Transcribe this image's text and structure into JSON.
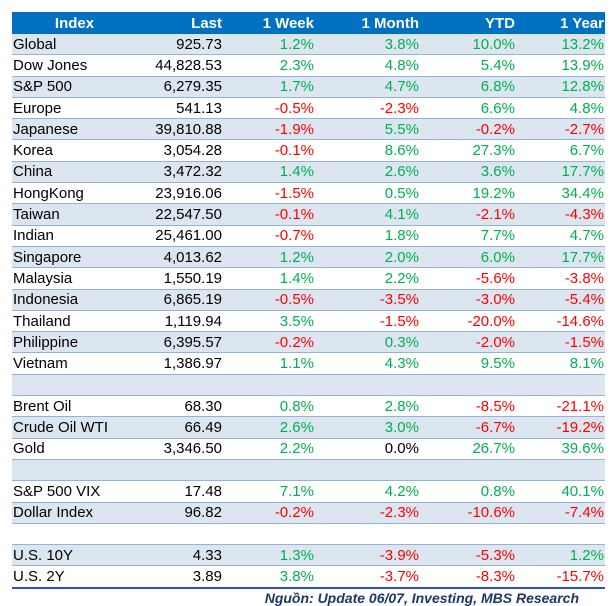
{
  "columns": [
    "Index",
    "Last",
    "1 Week",
    "1 Month",
    "YTD",
    "1 Year"
  ],
  "rows": [
    [
      "Global",
      "925.73",
      "1.2%",
      "3.8%",
      "10.0%",
      "13.2%"
    ],
    [
      "Dow Jones",
      "44,828.53",
      "2.3%",
      "4.8%",
      "5.4%",
      "13.9%"
    ],
    [
      "S&P 500",
      "6,279.35",
      "1.7%",
      "4.7%",
      "6.8%",
      "12.8%"
    ],
    [
      "Europe",
      "541.13",
      "-0.5%",
      "-2.3%",
      "6.6%",
      "4.8%"
    ],
    [
      "Japanese",
      "39,810.88",
      "-1.9%",
      "5.5%",
      "-0.2%",
      "-2.7%"
    ],
    [
      "Korea",
      "3,054.28",
      "-0.1%",
      "8.6%",
      "27.3%",
      "6.7%"
    ],
    [
      "China",
      "3,472.32",
      "1.4%",
      "2.6%",
      "3.6%",
      "17.7%"
    ],
    [
      "HongKong",
      "23,916.06",
      "-1.5%",
      "0.5%",
      "19.2%",
      "34.4%"
    ],
    [
      "Taiwan",
      "22,547.50",
      "-0.1%",
      "4.1%",
      "-2.1%",
      "-4.3%"
    ],
    [
      "Indian",
      "25,461.00",
      "-0.7%",
      "1.8%",
      "7.7%",
      "4.7%"
    ],
    [
      "Singapore",
      "4,013.62",
      "1.2%",
      "2.0%",
      "6.0%",
      "17.7%"
    ],
    [
      "Malaysia",
      "1,550.19",
      "1.4%",
      "2.2%",
      "-5.6%",
      "-3.8%"
    ],
    [
      "Indonesia",
      "6,865.19",
      "-0.5%",
      "-3.5%",
      "-3.0%",
      "-5.4%"
    ],
    [
      "Thailand",
      "1,119.94",
      "3.5%",
      "-1.5%",
      "-20.0%",
      "-14.6%"
    ],
    [
      "Philippine",
      "6,395.57",
      "-0.2%",
      "0.3%",
      "-2.0%",
      "-1.5%"
    ],
    [
      "Vietnam",
      "1,386.97",
      "1.1%",
      "4.3%",
      "9.5%",
      "8.1%"
    ],
    [],
    [
      "Brent Oil",
      "68.30",
      "0.8%",
      "2.8%",
      "-8.5%",
      "-21.1%"
    ],
    [
      "Crude Oil WTI",
      "66.49",
      "2.6%",
      "3.0%",
      "-6.7%",
      "-19.2%"
    ],
    [
      "Gold",
      "3,346.50",
      "2.2%",
      "0.0%",
      "26.7%",
      "39.6%"
    ],
    [],
    [
      "S&P 500 VIX",
      "17.48",
      "7.1%",
      "4.2%",
      "0.8%",
      "40.1%"
    ],
    [
      "Dollar Index",
      "96.82",
      "-0.2%",
      "-2.3%",
      "-10.6%",
      "-7.4%"
    ],
    [],
    [
      "U.S. 10Y",
      "4.33",
      "1.3%",
      "-3.9%",
      "-5.3%",
      "1.2%"
    ],
    [
      "U.S. 2Y",
      "3.89",
      "3.8%",
      "-3.7%",
      "-8.3%",
      "-15.7%"
    ]
  ],
  "source": "Nguồn: Update 06/07, Investing, MBS Research",
  "colors": {
    "header": "#0070C0",
    "shade": "#DCE6F1",
    "positive": "#00B050",
    "negative": "#FF0000"
  }
}
